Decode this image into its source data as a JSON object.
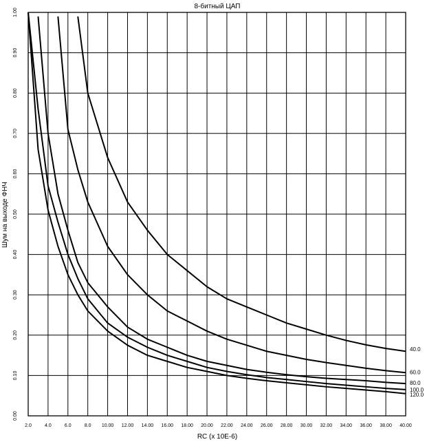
{
  "chart_data": {
    "type": "line",
    "title": "8-битный ЦАП",
    "xlabel": "RC (x 10E-6)",
    "ylabel": "Шум на выходе ФНЧ",
    "xlim": [
      2.0,
      40.0
    ],
    "ylim": [
      0.0,
      1.0
    ],
    "x_ticks": [
      "2.0",
      "4.0",
      "6.0",
      "8.0",
      "10.00",
      "12.00",
      "14.00",
      "16.00",
      "18.00",
      "20.00",
      "22.00",
      "24.00",
      "26.00",
      "28.00",
      "30.00",
      "32.00",
      "34.00",
      "36.00",
      "38.00",
      "40.00"
    ],
    "y_ticks": [
      "0.00",
      "0.10",
      "0.20",
      "0.30",
      "0.40",
      "0.50",
      "0.60",
      "0.70",
      "0.80",
      "0.90",
      "1.00"
    ],
    "grid": true,
    "x": [
      2.0,
      3.0,
      4.0,
      5.0,
      6.0,
      7.0,
      8.0,
      10.0,
      12.0,
      14.0,
      16.0,
      18.0,
      20.0,
      22.0,
      24.0,
      26.0,
      28.0,
      30.0,
      32.0,
      34.0,
      36.0,
      38.0,
      40.0
    ],
    "series": [
      {
        "name": "40.0",
        "values": [
          null,
          null,
          null,
          null,
          null,
          0.99,
          0.8,
          0.64,
          0.53,
          0.46,
          0.4,
          0.36,
          0.32,
          0.29,
          0.27,
          0.25,
          0.23,
          0.215,
          0.2,
          0.187,
          0.176,
          0.167,
          0.16
        ]
      },
      {
        "name": "60.0",
        "values": [
          null,
          null,
          null,
          0.99,
          0.71,
          0.61,
          0.53,
          0.42,
          0.35,
          0.3,
          0.26,
          0.235,
          0.21,
          0.19,
          0.175,
          0.16,
          0.15,
          0.14,
          0.132,
          0.125,
          0.118,
          0.112,
          0.107
        ]
      },
      {
        "name": "80.0",
        "values": [
          null,
          0.99,
          0.7,
          0.55,
          0.46,
          0.38,
          0.33,
          0.27,
          0.22,
          0.19,
          0.17,
          0.15,
          0.135,
          0.125,
          0.115,
          0.108,
          0.102,
          0.097,
          0.093,
          0.09,
          0.087,
          0.083,
          0.08
        ]
      },
      {
        "name": "100.0",
        "values": [
          1.0,
          0.76,
          0.57,
          0.48,
          0.4,
          0.34,
          0.29,
          0.23,
          0.195,
          0.17,
          0.15,
          0.135,
          0.12,
          0.11,
          0.102,
          0.095,
          0.09,
          0.085,
          0.08,
          0.076,
          0.072,
          0.068,
          0.065
        ]
      },
      {
        "name": "120.0",
        "values": [
          1.0,
          0.66,
          0.51,
          0.42,
          0.35,
          0.3,
          0.26,
          0.21,
          0.175,
          0.15,
          0.135,
          0.12,
          0.11,
          0.1,
          0.093,
          0.087,
          0.082,
          0.077,
          0.072,
          0.068,
          0.064,
          0.06,
          0.055
        ]
      }
    ]
  }
}
